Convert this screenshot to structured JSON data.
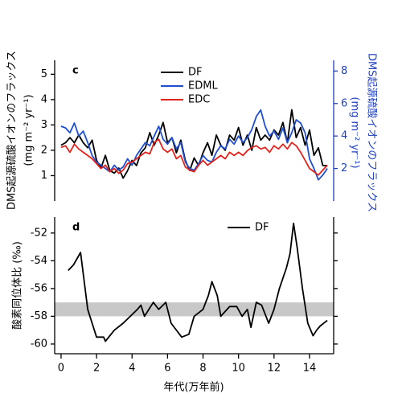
{
  "chart_data": [
    {
      "type": "line",
      "panel_label": "c",
      "y_label": "DMS起源硫酸イオンのフラックス",
      "y_unit": "(mg m⁻² yr⁻¹)",
      "y2_label": "DMS起源硫酸イオンのフラックス",
      "y2_unit": "(mg m⁻² yr⁻¹)",
      "x": [
        0,
        0.25,
        0.5,
        0.75,
        1,
        1.25,
        1.5,
        1.75,
        2,
        2.25,
        2.5,
        2.75,
        3,
        3.25,
        3.5,
        3.75,
        4,
        4.25,
        4.5,
        4.75,
        5,
        5.25,
        5.5,
        5.75,
        6,
        6.25,
        6.5,
        6.75,
        7,
        7.25,
        7.5,
        7.75,
        8,
        8.25,
        8.5,
        8.75,
        9,
        9.25,
        9.5,
        9.75,
        10,
        10.25,
        10.5,
        10.75,
        11,
        11.25,
        11.5,
        11.75,
        12,
        12.25,
        12.5,
        12.75,
        13,
        13.25,
        13.5,
        13.75,
        14,
        14.25,
        14.5,
        14.75,
        15
      ],
      "xlim": [
        -0.36,
        15.36
      ],
      "ylim": [
        0,
        5.55
      ],
      "yticks": [
        1,
        2,
        3,
        4,
        5
      ],
      "y2lim": [
        0,
        8.66
      ],
      "y2ticks": [
        2,
        4,
        6,
        8
      ],
      "y2_color": "#1f3fbf",
      "series": [
        {
          "name": "DF",
          "color": "#000000",
          "values": [
            2.2,
            2.3,
            2.5,
            2.3,
            2.6,
            2.3,
            2.1,
            2.4,
            1.6,
            1.3,
            1.8,
            1.2,
            1.1,
            1.3,
            0.9,
            1.2,
            1.6,
            1.4,
            1.9,
            2.1,
            2.7,
            2.2,
            2.6,
            3.1,
            2.3,
            2.5,
            1.9,
            2.4,
            1.6,
            1.2,
            1.7,
            1.4,
            1.9,
            2.3,
            1.8,
            2.6,
            2.2,
            2.0,
            2.6,
            2.4,
            2.9,
            2.2,
            2.6,
            2.0,
            2.9,
            2.4,
            2.6,
            2.4,
            2.8,
            2.6,
            3.1,
            2.3,
            3.6,
            2.5,
            2.9,
            2.2,
            2.8,
            1.8,
            2.1,
            1.4,
            1.4
          ]
        },
        {
          "name": "EDML",
          "color": "#1f4fd0",
          "axis": "y2",
          "values": [
            4.6,
            4.5,
            4.2,
            4.8,
            4.0,
            4.3,
            3.6,
            2.8,
            2.4,
            2.2,
            2.0,
            1.8,
            2.2,
            1.9,
            2.1,
            2.6,
            2.2,
            2.8,
            3.2,
            3.6,
            3.4,
            4.0,
            4.6,
            3.8,
            3.5,
            3.9,
            3.2,
            3.6,
            2.4,
            2.0,
            1.9,
            2.3,
            2.8,
            2.5,
            2.4,
            3.0,
            3.4,
            3.2,
            3.8,
            3.5,
            4.0,
            3.6,
            3.9,
            4.4,
            5.2,
            5.6,
            4.6,
            4.0,
            4.3,
            3.8,
            4.5,
            3.6,
            4.2,
            5.0,
            4.8,
            4.2,
            2.6,
            2.0,
            1.3,
            1.6,
            2.0
          ]
        },
        {
          "name": "EDC",
          "color": "#e0241c",
          "axis": "y2",
          "values": [
            3.3,
            3.4,
            3.0,
            3.5,
            3.2,
            3.0,
            2.8,
            2.6,
            2.3,
            2.0,
            2.2,
            1.8,
            2.0,
            1.7,
            1.9,
            2.3,
            2.4,
            2.6,
            2.8,
            3.0,
            2.9,
            3.6,
            3.8,
            3.2,
            3.0,
            3.2,
            2.6,
            2.8,
            2.1,
            1.9,
            1.8,
            2.2,
            2.5,
            2.2,
            2.4,
            2.6,
            2.8,
            2.6,
            3.0,
            2.8,
            3.0,
            2.8,
            3.1,
            3.3,
            3.4,
            3.2,
            3.3,
            3.0,
            3.4,
            3.2,
            3.5,
            3.2,
            3.6,
            3.4,
            3.0,
            2.5,
            2.0,
            1.8,
            1.6,
            1.9,
            2.2
          ]
        }
      ]
    },
    {
      "type": "line",
      "panel_label": "d",
      "y_label": "酸素同位体比 (‰)",
      "x_label": "年代(万年前)",
      "x": [
        0.4,
        0.7,
        1.1,
        1.5,
        2.0,
        2.4,
        2.5,
        3.0,
        3.5,
        4.3,
        4.5,
        4.7,
        5.2,
        5.5,
        5.9,
        6.2,
        6.8,
        7.2,
        7.5,
        8.0,
        8.3,
        8.5,
        8.8,
        9.0,
        9.5,
        9.9,
        10.2,
        10.5,
        10.7,
        11.0,
        11.3,
        11.7,
        12.0,
        12.3,
        12.7,
        12.9,
        13.1,
        13.3,
        13.6,
        13.9,
        14.2,
        14.4,
        14.6,
        15.0
      ],
      "xlim": [
        -0.36,
        15.36
      ],
      "xticks": [
        0,
        2,
        4,
        6,
        8,
        10,
        12,
        14
      ],
      "ylim": [
        -60.7,
        -50.85
      ],
      "yticks": [
        -60,
        -58,
        -56,
        -54,
        -52
      ],
      "band": [
        -58,
        -57
      ],
      "band_color": "#c8c8c8",
      "series": [
        {
          "name": "DF",
          "color": "#000000",
          "values": [
            -54.7,
            -54.3,
            -53.4,
            -57.5,
            -59.5,
            -59.5,
            -59.8,
            -59.0,
            -58.5,
            -57.5,
            -57.2,
            -58.0,
            -57.0,
            -57.5,
            -57.0,
            -58.5,
            -59.5,
            -59.3,
            -58.0,
            -57.5,
            -56.5,
            -55.5,
            -56.5,
            -58.0,
            -57.3,
            -57.3,
            -58.0,
            -57.5,
            -58.8,
            -57.0,
            -57.2,
            -58.5,
            -57.5,
            -56.0,
            -54.5,
            -53.5,
            -51.3,
            -53.0,
            -56.0,
            -58.5,
            -59.4,
            -59.0,
            -58.7,
            -58.3
          ]
        }
      ]
    }
  ]
}
